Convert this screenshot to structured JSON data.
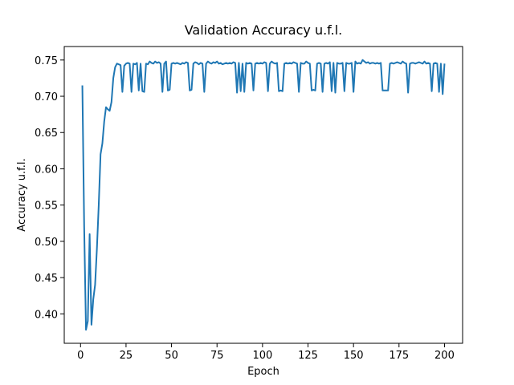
{
  "chart_data": {
    "type": "line",
    "title": "Validation Accuracy u.f.l.",
    "xlabel": "Epoch",
    "ylabel": "Accuracy u.f.l.",
    "x": [
      1,
      2,
      3,
      4,
      5,
      6,
      7,
      8,
      9,
      10,
      11,
      12,
      13,
      14,
      15,
      16,
      17,
      18,
      19,
      20,
      21,
      22,
      23,
      24,
      25,
      26,
      27,
      28,
      29,
      30,
      31,
      32,
      33,
      34,
      35,
      36,
      37,
      38,
      39,
      40,
      41,
      42,
      43,
      44,
      45,
      46,
      47,
      48,
      49,
      50,
      51,
      52,
      53,
      54,
      55,
      56,
      57,
      58,
      59,
      60,
      61,
      62,
      63,
      64,
      65,
      66,
      67,
      68,
      69,
      70,
      71,
      72,
      73,
      74,
      75,
      76,
      77,
      78,
      79,
      80,
      81,
      82,
      83,
      84,
      85,
      86,
      87,
      88,
      89,
      90,
      91,
      92,
      93,
      94,
      95,
      96,
      97,
      98,
      99,
      100,
      101,
      102,
      103,
      104,
      105,
      106,
      107,
      108,
      109,
      110,
      111,
      112,
      113,
      114,
      115,
      116,
      117,
      118,
      119,
      120,
      121,
      122,
      123,
      124,
      125,
      126,
      127,
      128,
      129,
      130,
      131,
      132,
      133,
      134,
      135,
      136,
      137,
      138,
      139,
      140,
      141,
      142,
      143,
      144,
      145,
      146,
      147,
      148,
      149,
      150,
      151,
      152,
      153,
      154,
      155,
      156,
      157,
      158,
      159,
      160,
      161,
      162,
      163,
      164,
      165,
      166,
      167,
      168,
      169,
      170,
      171,
      172,
      173,
      174,
      175,
      176,
      177,
      178,
      179,
      180,
      181,
      182,
      183,
      184,
      185,
      186,
      187,
      188,
      189,
      190,
      191,
      192,
      193,
      194,
      195,
      196,
      197,
      198,
      199,
      200
    ],
    "series": [
      {
        "color": "#1f77b4",
        "values": [
          0.715,
          0.52,
          0.378,
          0.39,
          0.51,
          0.385,
          0.42,
          0.44,
          0.49,
          0.55,
          0.62,
          0.635,
          0.665,
          0.685,
          0.682,
          0.68,
          0.692,
          0.725,
          0.74,
          0.745,
          0.744,
          0.743,
          0.706,
          0.742,
          0.745,
          0.746,
          0.745,
          0.706,
          0.745,
          0.744,
          0.746,
          0.708,
          0.745,
          0.707,
          0.706,
          0.745,
          0.744,
          0.748,
          0.746,
          0.745,
          0.748,
          0.746,
          0.747,
          0.745,
          0.706,
          0.745,
          0.748,
          0.708,
          0.709,
          0.745,
          0.746,
          0.745,
          0.746,
          0.745,
          0.744,
          0.746,
          0.745,
          0.747,
          0.746,
          0.708,
          0.709,
          0.745,
          0.747,
          0.746,
          0.744,
          0.746,
          0.745,
          0.706,
          0.745,
          0.748,
          0.746,
          0.745,
          0.747,
          0.746,
          0.748,
          0.745,
          0.746,
          0.744,
          0.745,
          0.746,
          0.745,
          0.746,
          0.745,
          0.747,
          0.746,
          0.705,
          0.746,
          0.707,
          0.745,
          0.706,
          0.746,
          0.745,
          0.746,
          0.745,
          0.708,
          0.745,
          0.746,
          0.745,
          0.746,
          0.745,
          0.747,
          0.746,
          0.707,
          0.745,
          0.748,
          0.746,
          0.745,
          0.746,
          0.707,
          0.708,
          0.707,
          0.745,
          0.746,
          0.745,
          0.746,
          0.745,
          0.747,
          0.746,
          0.745,
          0.706,
          0.746,
          0.745,
          0.745,
          0.748,
          0.746,
          0.745,
          0.708,
          0.709,
          0.708,
          0.745,
          0.746,
          0.745,
          0.706,
          0.745,
          0.746,
          0.745,
          0.747,
          0.707,
          0.746,
          0.705,
          0.746,
          0.745,
          0.745,
          0.746,
          0.707,
          0.746,
          0.745,
          0.745,
          0.746,
          0.706,
          0.748,
          0.745,
          0.746,
          0.745,
          0.75,
          0.748,
          0.746,
          0.747,
          0.745,
          0.746,
          0.746,
          0.745,
          0.746,
          0.745,
          0.746,
          0.708,
          0.708,
          0.708,
          0.708,
          0.745,
          0.746,
          0.745,
          0.746,
          0.747,
          0.746,
          0.745,
          0.748,
          0.746,
          0.745,
          0.705,
          0.745,
          0.746,
          0.746,
          0.745,
          0.746,
          0.747,
          0.746,
          0.745,
          0.748,
          0.745,
          0.746,
          0.745,
          0.707,
          0.745,
          0.746,
          0.745,
          0.706,
          0.745,
          0.703,
          0.745
        ]
      }
    ],
    "xlim": [
      -8.95,
      209.95
    ],
    "ylim": [
      0.3594,
      0.7686
    ],
    "xticks": [
      0,
      25,
      50,
      75,
      100,
      125,
      150,
      175,
      200
    ],
    "yticks": [
      {
        "value": 0.4,
        "label": "0.40"
      },
      {
        "value": 0.45,
        "label": "0.45"
      },
      {
        "value": 0.5,
        "label": "0.50"
      },
      {
        "value": 0.55,
        "label": "0.55"
      },
      {
        "value": 0.6,
        "label": "0.60"
      },
      {
        "value": 0.65,
        "label": "0.65"
      },
      {
        "value": 0.7,
        "label": "0.70"
      },
      {
        "value": 0.75,
        "label": "0.75"
      }
    ],
    "grid": false
  }
}
